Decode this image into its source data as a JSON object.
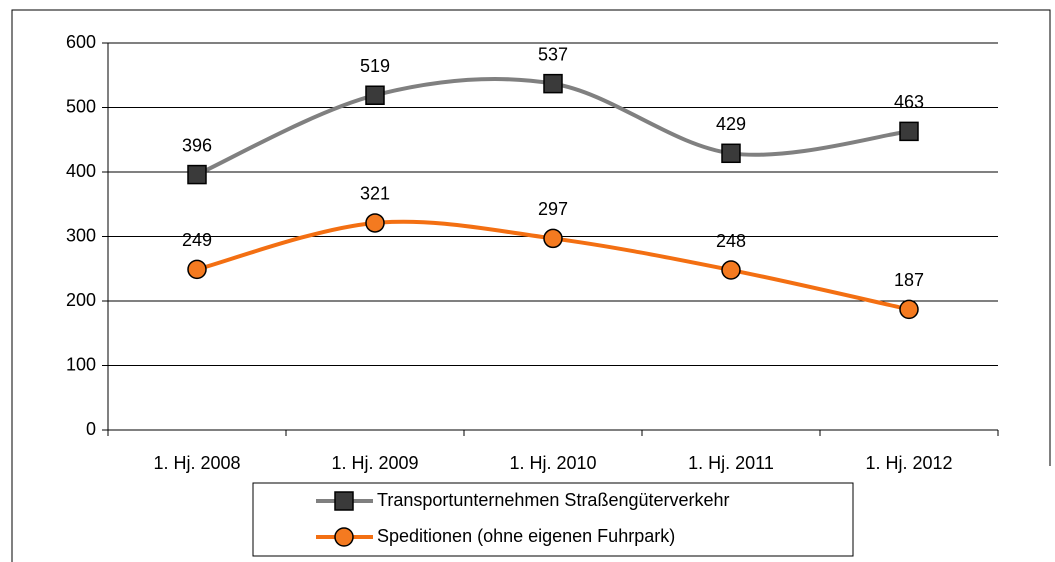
{
  "chart_data": {
    "type": "line",
    "smooth": true,
    "categories": [
      "1. Hj. 2008",
      "1. Hj. 2009",
      "1. Hj. 2010",
      "1. Hj. 2011",
      "1. Hj. 2012"
    ],
    "series": [
      {
        "name": "Transportunternehmen Straßengüterverkehr",
        "color": "#808080",
        "marker": "square",
        "marker_color": "#3a3a3a",
        "values": [
          396,
          519,
          537,
          429,
          463
        ]
      },
      {
        "name": "Speditionen (ohne eigenen Fuhrpark)",
        "color": "#f36f12",
        "marker": "circle",
        "marker_color": "#f47a20",
        "values": [
          249,
          321,
          297,
          248,
          187
        ]
      }
    ],
    "ylim": [
      0,
      600
    ],
    "yticks": [
      0,
      100,
      200,
      300,
      400,
      500,
      600
    ],
    "grid": true,
    "legend": "bottom"
  }
}
